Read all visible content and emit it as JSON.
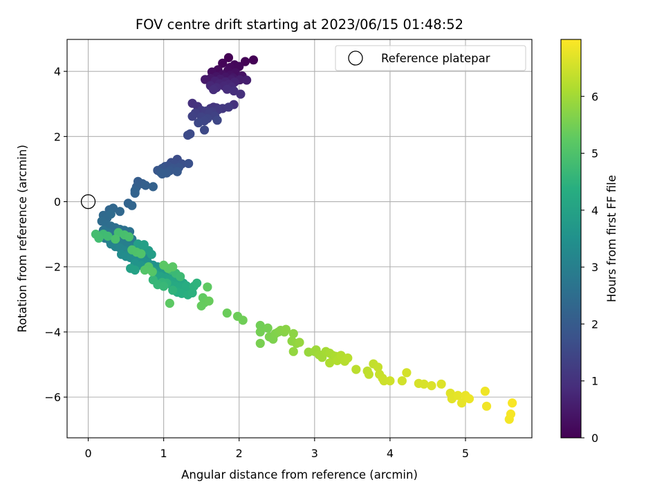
{
  "chart_data": {
    "type": "scatter",
    "title": "FOV centre drift starting at 2023/06/15 01:48:52",
    "xlabel": "Angular distance from reference (arcmin)",
    "ylabel": "Rotation from reference (arcmin)",
    "xlim": [
      -0.28,
      5.88
    ],
    "ylim": [
      -7.25,
      4.98
    ],
    "xticks": [
      0,
      1,
      2,
      3,
      4,
      5
    ],
    "xtick_labels": [
      "0",
      "1",
      "2",
      "3",
      "4",
      "5"
    ],
    "yticks": [
      -6,
      -4,
      -2,
      0,
      2,
      4
    ],
    "ytick_labels": [
      "−6",
      "−4",
      "−2",
      "0",
      "2",
      "4"
    ],
    "grid": true,
    "colormap": "viridis",
    "colorbar": {
      "label": "Hours from first FF file",
      "range": [
        0,
        7.0
      ],
      "ticks": [
        0,
        1,
        2,
        3,
        4,
        5,
        6
      ],
      "tick_labels": [
        "0",
        "1",
        "2",
        "3",
        "4",
        "5",
        "6"
      ]
    },
    "legend": {
      "entries": [
        "Reference platepar"
      ],
      "placement": "top-right"
    },
    "reference_point": {
      "x": 0,
      "y": 0
    },
    "series": [
      {
        "points": [
          [
            1.86,
            4.42
          ],
          [
            2.19,
            4.35
          ],
          [
            2.08,
            4.3
          ],
          [
            1.78,
            4.25
          ],
          [
            1.94,
            4.2
          ],
          [
            2.0,
            4.15
          ],
          [
            1.88,
            4.12
          ],
          [
            1.72,
            4.05
          ],
          [
            1.85,
            4.02
          ],
          [
            1.64,
            3.98
          ],
          [
            1.95,
            3.96
          ],
          [
            1.78,
            3.9
          ],
          [
            1.88,
            3.88
          ],
          [
            2.04,
            3.86
          ],
          [
            1.7,
            3.84
          ],
          [
            1.82,
            3.82
          ],
          [
            1.92,
            3.8
          ],
          [
            1.62,
            3.78
          ],
          [
            1.55,
            3.75
          ],
          [
            1.75,
            3.76
          ],
          [
            1.9,
            3.74
          ],
          [
            2.01,
            3.74
          ],
          [
            2.1,
            3.73
          ],
          [
            1.68,
            3.7
          ],
          [
            1.82,
            3.68
          ],
          [
            1.94,
            3.67
          ],
          [
            1.74,
            3.62
          ],
          [
            1.86,
            3.6
          ],
          [
            1.62,
            3.56
          ],
          [
            1.8,
            3.55
          ],
          [
            1.9,
            3.52
          ],
          [
            1.7,
            3.5
          ],
          [
            1.84,
            3.45
          ],
          [
            1.66,
            3.44
          ],
          [
            1.93,
            3.4
          ],
          [
            2.02,
            3.3
          ],
          [
            1.38,
            3.02
          ],
          [
            1.93,
            2.98
          ],
          [
            1.45,
            2.92
          ],
          [
            1.66,
            2.9
          ],
          [
            1.62,
            2.86
          ],
          [
            1.7,
            2.88
          ],
          [
            1.78,
            2.86
          ],
          [
            1.86,
            2.9
          ],
          [
            1.72,
            2.82
          ],
          [
            1.5,
            2.8
          ],
          [
            1.56,
            2.78
          ],
          [
            1.64,
            2.76
          ],
          [
            1.42,
            2.72
          ],
          [
            1.6,
            2.7
          ],
          [
            1.38,
            2.62
          ],
          [
            1.68,
            2.62
          ],
          [
            1.5,
            2.6
          ],
          [
            1.58,
            2.55
          ],
          [
            1.54,
            2.48
          ],
          [
            1.71,
            2.5
          ],
          [
            1.46,
            2.42
          ],
          [
            1.54,
            2.2
          ],
          [
            1.35,
            2.08
          ],
          [
            1.32,
            2.04
          ],
          [
            1.18,
            1.3
          ],
          [
            1.1,
            1.2
          ],
          [
            1.14,
            1.15
          ],
          [
            1.24,
            1.16
          ],
          [
            1.33,
            1.17
          ],
          [
            1.06,
            1.1
          ],
          [
            1.02,
            1.08
          ],
          [
            1.2,
            1.05
          ],
          [
            1.12,
            1.02
          ],
          [
            0.98,
            1.02
          ],
          [
            0.92,
            0.96
          ],
          [
            1.08,
            0.95
          ],
          [
            1.18,
            0.92
          ],
          [
            0.96,
            0.9
          ],
          [
            1.04,
            0.88
          ],
          [
            0.98,
            0.85
          ],
          [
            0.66,
            0.62
          ],
          [
            0.72,
            0.55
          ],
          [
            0.64,
            0.45
          ],
          [
            0.76,
            0.5
          ],
          [
            0.86,
            0.46
          ],
          [
            0.62,
            0.34
          ],
          [
            0.62,
            0.26
          ],
          [
            0.53,
            -0.05
          ],
          [
            0.58,
            -0.12
          ],
          [
            0.28,
            -0.25
          ],
          [
            0.33,
            -0.2
          ],
          [
            0.42,
            -0.3
          ],
          [
            0.2,
            -0.42
          ],
          [
            0.25,
            -0.5
          ],
          [
            0.3,
            -0.38
          ],
          [
            0.18,
            -0.6
          ],
          [
            0.24,
            -0.7
          ],
          [
            0.3,
            -0.75
          ],
          [
            0.36,
            -0.8
          ],
          [
            0.42,
            -0.85
          ],
          [
            0.48,
            -0.88
          ],
          [
            0.55,
            -0.92
          ],
          [
            0.2,
            -0.88
          ],
          [
            0.26,
            -0.95
          ],
          [
            0.32,
            -1.0
          ],
          [
            0.38,
            -1.05
          ],
          [
            0.44,
            -1.1
          ],
          [
            0.5,
            -1.12
          ],
          [
            0.58,
            -1.15
          ],
          [
            0.16,
            -1.05
          ],
          [
            0.22,
            -1.12
          ],
          [
            0.28,
            -1.18
          ],
          [
            0.34,
            -1.22
          ],
          [
            0.4,
            -1.25
          ],
          [
            0.46,
            -1.3
          ],
          [
            0.52,
            -1.35
          ],
          [
            0.6,
            -1.38
          ],
          [
            0.68,
            -1.4
          ],
          [
            0.3,
            -1.3
          ],
          [
            0.36,
            -1.38
          ],
          [
            0.42,
            -1.42
          ],
          [
            0.48,
            -1.5
          ],
          [
            0.54,
            -1.55
          ],
          [
            0.6,
            -1.58
          ],
          [
            0.66,
            -1.62
          ],
          [
            0.72,
            -1.68
          ],
          [
            0.78,
            -1.72
          ],
          [
            0.44,
            -1.62
          ],
          [
            0.5,
            -1.68
          ],
          [
            0.56,
            -1.72
          ],
          [
            0.62,
            -1.78
          ],
          [
            0.68,
            -1.82
          ],
          [
            0.74,
            -1.85
          ],
          [
            0.8,
            -1.9
          ],
          [
            0.86,
            -1.95
          ],
          [
            0.92,
            -2.0
          ],
          [
            0.98,
            -2.02
          ],
          [
            0.62,
            -1.9
          ],
          [
            0.7,
            -1.96
          ],
          [
            0.76,
            -2.02
          ],
          [
            0.82,
            -2.08
          ],
          [
            0.88,
            -2.12
          ],
          [
            0.94,
            -2.16
          ],
          [
            1.0,
            -2.18
          ],
          [
            1.06,
            -2.22
          ],
          [
            0.72,
            -1.42
          ],
          [
            0.8,
            -1.5
          ],
          [
            0.84,
            -1.62
          ],
          [
            0.66,
            -1.3
          ],
          [
            0.74,
            -1.32
          ],
          [
            0.56,
            -2.05
          ],
          [
            0.62,
            -2.1
          ],
          [
            0.9,
            -2.25
          ],
          [
            0.96,
            -2.3
          ],
          [
            1.02,
            -2.34
          ],
          [
            1.08,
            -2.38
          ],
          [
            1.14,
            -2.42
          ],
          [
            1.2,
            -2.46
          ],
          [
            1.26,
            -2.5
          ],
          [
            1.1,
            -2.55
          ],
          [
            1.16,
            -2.6
          ],
          [
            1.22,
            -2.64
          ],
          [
            1.28,
            -2.68
          ],
          [
            1.34,
            -2.72
          ],
          [
            1.3,
            -2.58
          ],
          [
            1.18,
            -2.78
          ],
          [
            1.24,
            -2.82
          ],
          [
            1.32,
            -2.86
          ],
          [
            1.38,
            -2.8
          ],
          [
            1.4,
            -2.6
          ],
          [
            1.44,
            -2.5
          ],
          [
            1.12,
            -2.72
          ],
          [
            1.04,
            -2.5
          ],
          [
            0.98,
            -2.48
          ],
          [
            0.86,
            -2.4
          ],
          [
            0.92,
            -2.55
          ],
          [
            1.0,
            -2.6
          ],
          [
            1.1,
            -2.1
          ],
          [
            1.16,
            -2.2
          ],
          [
            1.22,
            -2.3
          ],
          [
            0.2,
            -1.0
          ],
          [
            0.26,
            -1.06
          ],
          [
            0.14,
            -1.12
          ],
          [
            0.1,
            -1.0
          ],
          [
            0.4,
            -0.95
          ],
          [
            0.48,
            -1.02
          ],
          [
            0.54,
            -1.08
          ],
          [
            0.36,
            -1.15
          ],
          [
            0.58,
            -1.48
          ],
          [
            0.64,
            -1.55
          ],
          [
            0.7,
            -1.6
          ],
          [
            0.8,
            -2.0
          ],
          [
            0.75,
            -2.1
          ],
          [
            0.85,
            -2.15
          ],
          [
            1.06,
            -2.05
          ],
          [
            1.12,
            -2.0
          ],
          [
            1.0,
            -1.95
          ],
          [
            1.08,
            -3.12
          ],
          [
            1.58,
            -2.62
          ],
          [
            1.52,
            -2.95
          ],
          [
            1.54,
            -3.1
          ],
          [
            1.5,
            -3.2
          ],
          [
            1.6,
            -3.05
          ],
          [
            1.84,
            -3.42
          ],
          [
            1.98,
            -3.52
          ],
          [
            2.05,
            -3.64
          ],
          [
            2.28,
            -3.8
          ],
          [
            2.28,
            -4.0
          ],
          [
            2.38,
            -3.88
          ],
          [
            2.28,
            -4.35
          ],
          [
            2.4,
            -4.15
          ],
          [
            2.45,
            -4.22
          ],
          [
            2.48,
            -4.05
          ],
          [
            2.52,
            -4.0
          ],
          [
            2.55,
            -3.95
          ],
          [
            2.6,
            -4.0
          ],
          [
            2.62,
            -3.92
          ],
          [
            2.72,
            -4.05
          ],
          [
            2.7,
            -4.28
          ],
          [
            2.76,
            -4.35
          ],
          [
            2.72,
            -4.6
          ],
          [
            2.8,
            -4.32
          ],
          [
            2.92,
            -4.62
          ],
          [
            3.0,
            -4.6
          ],
          [
            3.02,
            -4.55
          ],
          [
            3.06,
            -4.7
          ],
          [
            3.1,
            -4.78
          ],
          [
            3.15,
            -4.6
          ],
          [
            3.2,
            -4.65
          ],
          [
            3.24,
            -4.72
          ],
          [
            3.28,
            -4.75
          ],
          [
            3.2,
            -4.95
          ],
          [
            3.3,
            -4.88
          ],
          [
            3.35,
            -4.72
          ],
          [
            3.4,
            -4.9
          ],
          [
            3.44,
            -4.8
          ],
          [
            3.55,
            -5.15
          ],
          [
            3.7,
            -5.2
          ],
          [
            3.72,
            -5.3
          ],
          [
            3.78,
            -4.98
          ],
          [
            3.84,
            -5.08
          ],
          [
            3.86,
            -5.3
          ],
          [
            3.9,
            -5.42
          ],
          [
            3.92,
            -5.5
          ],
          [
            4.0,
            -5.5
          ],
          [
            4.16,
            -5.5
          ],
          [
            4.22,
            -5.25
          ],
          [
            4.38,
            -5.58
          ],
          [
            4.45,
            -5.6
          ],
          [
            4.55,
            -5.65
          ],
          [
            4.68,
            -5.6
          ],
          [
            4.8,
            -5.88
          ],
          [
            4.82,
            -6.05
          ],
          [
            4.9,
            -5.95
          ],
          [
            4.95,
            -6.18
          ],
          [
            5.0,
            -5.95
          ],
          [
            5.05,
            -6.05
          ],
          [
            5.26,
            -5.82
          ],
          [
            5.28,
            -6.28
          ],
          [
            5.58,
            -6.68
          ],
          [
            5.6,
            -6.52
          ],
          [
            5.62,
            -6.18
          ]
        ]
      }
    ]
  }
}
